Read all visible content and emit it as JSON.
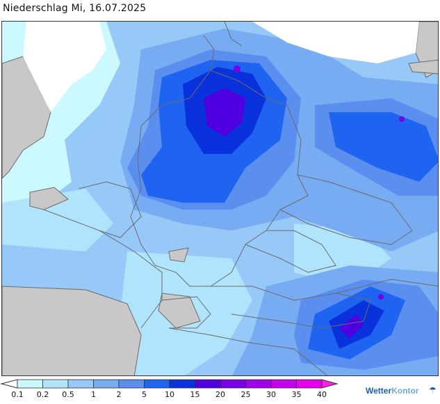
{
  "title": "Niederschlag Mi, 16.07.2025",
  "legend": {
    "ticks": [
      "0.1",
      "0.2",
      "0.5",
      "1",
      "2",
      "5",
      "10",
      "15",
      "20",
      "25",
      "30",
      "35",
      "40"
    ],
    "colors": [
      "#ffffff",
      "#ccf8ff",
      "#b0e4fc",
      "#96c8f8",
      "#78acf2",
      "#5a8ff0",
      "#1e64f0",
      "#0a32dc",
      "#5000e0",
      "#7800e6",
      "#a000ea",
      "#c800f0",
      "#e600f0",
      "#ff1ee6"
    ]
  },
  "map": {
    "land_color": "#c8c8c8",
    "sea_color": "#ffffff",
    "border_color": "#6a6a6a",
    "levels": [
      {
        "name": "0.1-0.2",
        "color": "#ccf8ff"
      },
      {
        "name": "0.2-0.5",
        "color": "#b0e4fc"
      },
      {
        "name": "0.5-1",
        "color": "#96c8f8"
      },
      {
        "name": "1-2",
        "color": "#78acf2"
      },
      {
        "name": "2-5",
        "color": "#5a8ff0"
      },
      {
        "name": "5-10",
        "color": "#1e64f0"
      },
      {
        "name": "10-15",
        "color": "#0a32dc"
      },
      {
        "name": "15-20",
        "color": "#5000e0"
      },
      {
        "name": "20-25",
        "color": "#7800e6"
      }
    ]
  },
  "brand": {
    "part1": "Wetter",
    "part2": "Kontor",
    "icon": "rain-drops-icon"
  }
}
